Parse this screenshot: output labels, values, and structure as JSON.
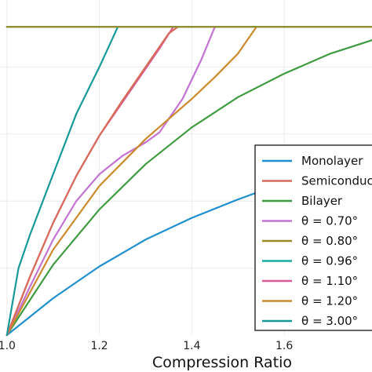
{
  "chart_data": {
    "type": "line",
    "title": "",
    "xlabel": "Compression Ratio",
    "ylabel": "",
    "xlim": [
      0.985,
      1.79
    ],
    "ylim": [
      0,
      1
    ],
    "xticks": [
      {
        "value": 1.0,
        "label": "1.0"
      },
      {
        "value": 1.2,
        "label": "1.2"
      },
      {
        "value": 1.4,
        "label": "1.4"
      },
      {
        "value": 1.6,
        "label": "1.6"
      }
    ],
    "yticks": [
      0.2,
      0.4,
      0.6,
      0.8
    ],
    "grid": true,
    "legend_position": "bottom-right",
    "ceiling": 0.92,
    "series": [
      {
        "name": "Monolayer",
        "color": "#1f8fce",
        "x": [
          1.0,
          1.05,
          1.1,
          1.2,
          1.3,
          1.4,
          1.5,
          1.6,
          1.7,
          1.79
        ],
        "y": [
          0.0,
          0.055,
          0.11,
          0.205,
          0.285,
          0.35,
          0.405,
          0.455,
          0.505,
          0.55
        ]
      },
      {
        "name": "Semiconductor",
        "color": "#d96b5a",
        "x": [
          1.0,
          1.05,
          1.1,
          1.15,
          1.2,
          1.25,
          1.3,
          1.32,
          1.35,
          1.37
        ],
        "y": [
          0.0,
          0.175,
          0.335,
          0.475,
          0.595,
          0.7,
          0.8,
          0.84,
          0.9,
          0.92
        ]
      },
      {
        "name": "Bilayer",
        "color": "#3f9b3f",
        "x": [
          1.0,
          1.1,
          1.2,
          1.3,
          1.4,
          1.5,
          1.6,
          1.7,
          1.79
        ],
        "y": [
          0.0,
          0.21,
          0.375,
          0.51,
          0.62,
          0.71,
          0.78,
          0.84,
          0.88
        ]
      },
      {
        "name": "θ = 0.70°",
        "color": "#c373d3",
        "x": [
          1.0,
          1.05,
          1.1,
          1.15,
          1.2,
          1.25,
          1.3,
          1.33,
          1.35,
          1.38,
          1.42,
          1.45
        ],
        "y": [
          0.0,
          0.145,
          0.285,
          0.4,
          0.48,
          0.535,
          0.575,
          0.605,
          0.645,
          0.705,
          0.82,
          0.92
        ]
      },
      {
        "name": "θ = 0.80°",
        "color": "#9a8a25",
        "x": [
          1.0,
          1.79
        ],
        "y": [
          0.92,
          0.92
        ]
      },
      {
        "name": "θ = 0.96°",
        "color": "#17aba0",
        "x": [
          1.0,
          1.79
        ],
        "y": [
          0.92,
          0.92
        ]
      },
      {
        "name": "θ = 1.10°",
        "color": "#d65a98",
        "x": [
          1.0,
          1.05,
          1.1,
          1.15,
          1.2,
          1.25,
          1.3,
          1.33,
          1.36
        ],
        "y": [
          0.0,
          0.175,
          0.335,
          0.475,
          0.595,
          0.695,
          0.795,
          0.855,
          0.92
        ]
      },
      {
        "name": "θ = 1.20°",
        "color": "#cc8a2c",
        "x": [
          1.0,
          1.1,
          1.2,
          1.3,
          1.4,
          1.45,
          1.5,
          1.54
        ],
        "y": [
          0.0,
          0.255,
          0.445,
          0.585,
          0.705,
          0.77,
          0.84,
          0.92
        ]
      },
      {
        "name": "θ = 3.00°",
        "color": "#17999a",
        "x": [
          1.0,
          1.025,
          1.05,
          1.1,
          1.15,
          1.2,
          1.22,
          1.24
        ],
        "y": [
          0.0,
          0.2,
          0.3,
          0.48,
          0.66,
          0.8,
          0.86,
          0.92
        ]
      }
    ]
  }
}
